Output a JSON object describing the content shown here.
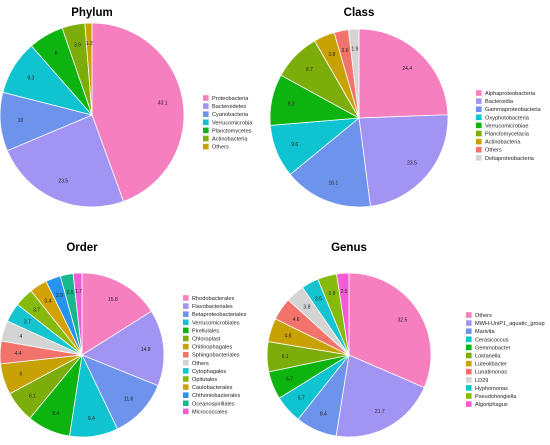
{
  "chart_data": [
    {
      "type": "pie",
      "title": "Phylum",
      "categories": [
        "Proteobacteria",
        "Bacteroidetes",
        "Cyanobacteria",
        "Verrucomicrobia",
        "Planctomycetes",
        "Actinobacteria",
        "Others"
      ],
      "values": [
        43.1,
        23.5,
        10,
        9.3,
        6,
        3.9,
        1.2
      ],
      "labels": [
        "43.1",
        "23.5",
        "10",
        "9.3",
        "6",
        "3.9",
        "1.2"
      ],
      "colors": [
        "#f67fbf",
        "#a294f2",
        "#6e93ec",
        "#10c3d0",
        "#0db40f",
        "#7cad0b",
        "#c8a204"
      ],
      "legend_position": "right"
    },
    {
      "type": "pie",
      "title": "Class",
      "categories": [
        "Alphaproteobacteria",
        "Bacteroidia",
        "Gammaproteobacteria",
        "Oxyphotobacteria",
        "Verrucomicrobiae",
        "Planctomycetacia",
        "Actinobacteria",
        "Others",
        "Deltaproteobacteria"
      ],
      "values": [
        24.4,
        23.5,
        16.1,
        9.6,
        9.3,
        8.7,
        3.8,
        2.6,
        1.9
      ],
      "labels": [
        "24.4",
        "23.5",
        "16.1",
        "9.6",
        "9.3",
        "8.7",
        "3.8",
        "2.6",
        "1.9"
      ],
      "colors": [
        "#f67fbf",
        "#a294f2",
        "#6e93ec",
        "#10c3d0",
        "#0db40f",
        "#7cad0b",
        "#c8a204",
        "#f2736b",
        "#d4d4d4"
      ],
      "legend_position": "right"
    },
    {
      "type": "pie",
      "title": "Order",
      "categories": [
        "Rhodobacterales",
        "Flavobacteriales",
        "Betaproteobacteriales",
        "Verrucomicrobiales",
        "Pirellulales",
        "Chloroplast",
        "Chitinophagales",
        "Sphingobacteriales",
        "Others",
        "Cytophagales",
        "Opitutales",
        "Caulobacterales",
        "Chthoniobacterales",
        "Oceanospirillales",
        "Micrococcales"
      ],
      "values": [
        15.8,
        14.8,
        11.6,
        9.4,
        8.4,
        6.1,
        6,
        4.4,
        4,
        3.7,
        3.7,
        3.4,
        2.9,
        2.5,
        1.7
      ],
      "labels": [
        "15.8",
        "14.8",
        "11.6",
        "9.4",
        "8.4",
        "6.1",
        "6",
        "4.4",
        "4",
        "3.7",
        "3.7",
        "3.4",
        "2.9",
        "2.5",
        "1.7"
      ],
      "colors": [
        "#f67fbf",
        "#a294f2",
        "#6e93ec",
        "#10c3d0",
        "#0db40f",
        "#7cad0b",
        "#c8a204",
        "#f2736b",
        "#d4d4d4",
        "#15c4cf",
        "#86bb0d",
        "#d2a104",
        "#2793ec",
        "#16b88c",
        "#f55bd6"
      ],
      "legend_position": "right"
    },
    {
      "type": "pie",
      "title": "Genus",
      "categories": [
        "Others",
        "MWH-UniP1_aquatic_group",
        "Marivita",
        "Cerasicoccus",
        "Gemmobacter",
        "Loktanella",
        "Luteolibacter",
        "Lunatimonas",
        "LD29",
        "Hyphomonas",
        "Pseudohongiella",
        "Algoriphagus"
      ],
      "values": [
        32.5,
        21.7,
        8.4,
        5.7,
        5.7,
        6.1,
        4.8,
        4.6,
        3.8,
        3.5,
        3.9,
        2.5
      ],
      "labels": [
        "32.5",
        "21.7",
        "8.4",
        "5.7",
        "5.7",
        "6.1",
        "4.8",
        "4.6",
        "3.8",
        "3.5",
        "3.9",
        "2.5"
      ],
      "colors": [
        "#f67fbf",
        "#a294f2",
        "#6e93ec",
        "#10c3d0",
        "#0db40f",
        "#7cad0b",
        "#c8a204",
        "#f2736b",
        "#d4d4d4",
        "#15c4cf",
        "#86bb0d",
        "#f55bd6"
      ],
      "legend_position": "right"
    }
  ]
}
